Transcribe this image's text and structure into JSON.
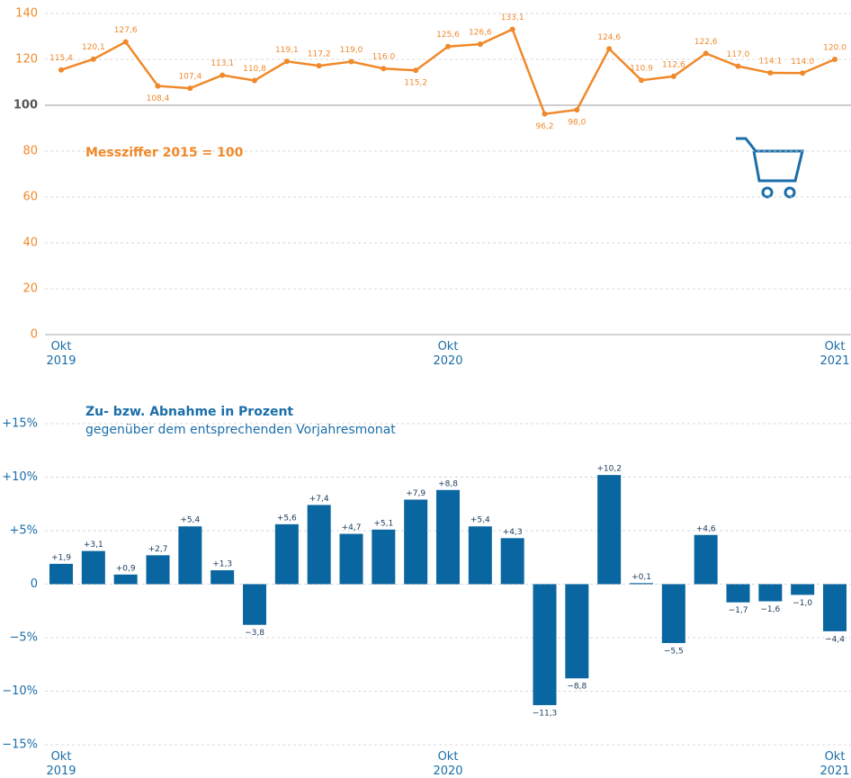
{
  "chart_data": [
    {
      "type": "line",
      "annotation": "Messziffer 2015 = 100",
      "categories": [
        "Okt 2019",
        null,
        null,
        null,
        null,
        null,
        null,
        null,
        null,
        null,
        null,
        null,
        "Okt 2020",
        null,
        null,
        null,
        null,
        null,
        null,
        null,
        null,
        null,
        null,
        null,
        "Okt 2021"
      ],
      "values": [
        115.4,
        120.1,
        127.6,
        108.4,
        107.4,
        113.1,
        110.8,
        119.1,
        117.2,
        119.0,
        116.0,
        115.2,
        125.6,
        126.6,
        133.1,
        96.2,
        98.0,
        124.6,
        110.9,
        112.6,
        122.6,
        117.0,
        114.1,
        114.0,
        120.0
      ],
      "value_labels": [
        "115,4",
        "120,1",
        "127,6",
        "108,4",
        "107,4",
        "113,1",
        "110,8",
        "119,1",
        "117,2",
        "119,0",
        "116.0",
        "115,2",
        "125,6",
        "126,6",
        "133,1",
        "96,2",
        "98,0",
        "124,6",
        "110.9",
        "112,6",
        "122,6",
        "117.0",
        "114.1",
        "114.0",
        "120.0"
      ],
      "color": "#f0892b",
      "ylim": [
        0,
        140
      ],
      "yticks": [
        0,
        20,
        40,
        60,
        80,
        100,
        120,
        140
      ],
      "reference_line": 100,
      "grid": true
    },
    {
      "type": "bar",
      "title": "Zu- bzw. Abnahme in Prozent",
      "subtitle": "gegenüber dem entsprechenden Vorjahresmonat",
      "categories": [
        "Okt 2019",
        null,
        null,
        null,
        null,
        null,
        null,
        null,
        null,
        null,
        null,
        null,
        "Okt 2020",
        null,
        null,
        null,
        null,
        null,
        null,
        null,
        null,
        null,
        null,
        null,
        "Okt 2021"
      ],
      "values": [
        1.9,
        3.1,
        0.9,
        2.7,
        5.4,
        1.3,
        -3.8,
        5.6,
        7.4,
        4.7,
        5.1,
        7.9,
        8.8,
        5.4,
        4.3,
        -11.3,
        -8.8,
        10.2,
        0.1,
        -5.5,
        4.6,
        -1.7,
        -1.6,
        -1.0,
        -4.4
      ],
      "value_labels": [
        "+1,9",
        "+3,1",
        "+0,9",
        "+2,7",
        "+5,4",
        "+1,3",
        "−3,8",
        "+5,6",
        "+7,4",
        "+4,7",
        "+5,1",
        "+7,9",
        "+8,8",
        "+5,4",
        "+4,3",
        "−11,3",
        "−8,8",
        "+10,2",
        "+0,1",
        "−5,5",
        "+4,6",
        "−1,7",
        "−1,6",
        "−1,0",
        "−4,4"
      ],
      "color": "#0a66a0",
      "ylim": [
        -15,
        15
      ],
      "yticks": [
        {
          "value": -15,
          "label": "−15%"
        },
        {
          "value": -10,
          "label": "−10%"
        },
        {
          "value": -5,
          "label": "−5%"
        },
        0,
        {
          "value": 5,
          "label": "+5%"
        },
        {
          "value": 10,
          "label": "+10%"
        },
        {
          "value": 15,
          "label": "+15%"
        }
      ],
      "grid": true
    }
  ]
}
